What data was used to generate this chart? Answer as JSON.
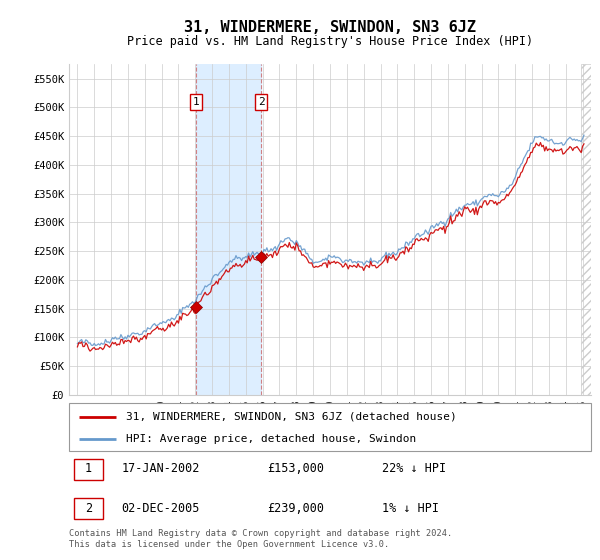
{
  "title": "31, WINDERMERE, SWINDON, SN3 6JZ",
  "subtitle": "Price paid vs. HM Land Registry's House Price Index (HPI)",
  "ylim": [
    0,
    575000
  ],
  "yticks": [
    0,
    50000,
    100000,
    150000,
    200000,
    250000,
    300000,
    350000,
    400000,
    450000,
    500000,
    550000
  ],
  "ytick_labels": [
    "£0",
    "£50K",
    "£100K",
    "£150K",
    "£200K",
    "£250K",
    "£300K",
    "£350K",
    "£400K",
    "£450K",
    "£500K",
    "£550K"
  ],
  "xlim_start": 1994.5,
  "xlim_end": 2025.5,
  "xticks": [
    1995,
    1996,
    1997,
    1998,
    1999,
    2000,
    2001,
    2002,
    2003,
    2004,
    2005,
    2006,
    2007,
    2008,
    2009,
    2010,
    2011,
    2012,
    2013,
    2014,
    2015,
    2016,
    2017,
    2018,
    2019,
    2020,
    2021,
    2022,
    2023,
    2024,
    2025
  ],
  "sale1_date": 2002.04,
  "sale1_price": 153000,
  "sale1_label": "1",
  "sale2_date": 2005.92,
  "sale2_price": 239000,
  "sale2_label": "2",
  "legend_line1": "31, WINDERMERE, SWINDON, SN3 6JZ (detached house)",
  "legend_line2": "HPI: Average price, detached house, Swindon",
  "ann1_col1": "17-JAN-2002",
  "ann1_col2": "£153,000",
  "ann1_col3": "22% ↓ HPI",
  "ann2_col1": "02-DEC-2005",
  "ann2_col2": "£239,000",
  "ann2_col3": "1% ↓ HPI",
  "footer": "Contains HM Land Registry data © Crown copyright and database right 2024.\nThis data is licensed under the Open Government Licence v3.0.",
  "line_color_red": "#cc0000",
  "line_color_blue": "#6699cc",
  "shade_color": "#ddeeff",
  "grid_color": "#cccccc",
  "bg_color": "#ffffff"
}
